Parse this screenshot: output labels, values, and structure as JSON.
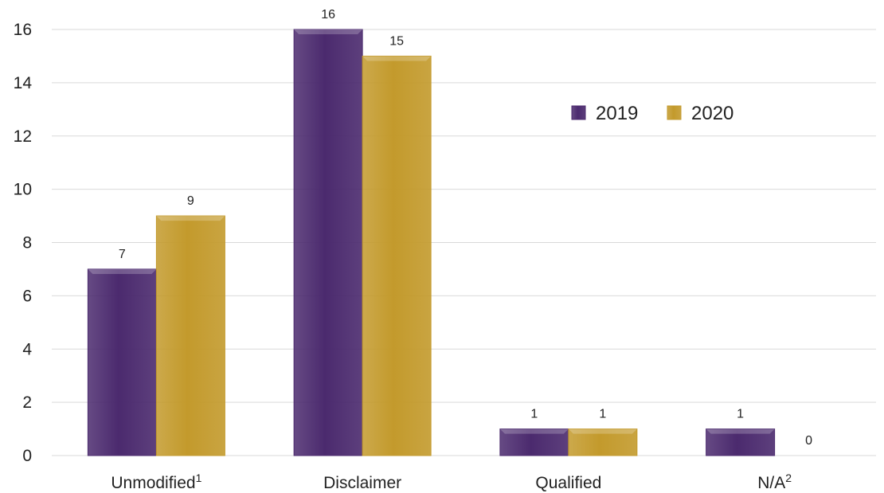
{
  "chart_data": {
    "type": "bar",
    "categories": [
      {
        "label": "Unmodified",
        "sup": "1"
      },
      {
        "label": "Disclaimer",
        "sup": ""
      },
      {
        "label": "Qualified",
        "sup": ""
      },
      {
        "label": "N/A",
        "sup": "2"
      }
    ],
    "series": [
      {
        "name": "2019",
        "values": [
          7,
          16,
          1,
          1
        ],
        "color": "#4b2a6e"
      },
      {
        "name": "2020",
        "values": [
          9,
          15,
          1,
          0
        ],
        "color": "#c39a2c"
      }
    ],
    "ylim": [
      0,
      16
    ],
    "yticks": [
      0,
      2,
      4,
      6,
      8,
      10,
      12,
      14,
      16
    ],
    "grid": true,
    "legend_position": "top-right",
    "data_labels": true
  }
}
